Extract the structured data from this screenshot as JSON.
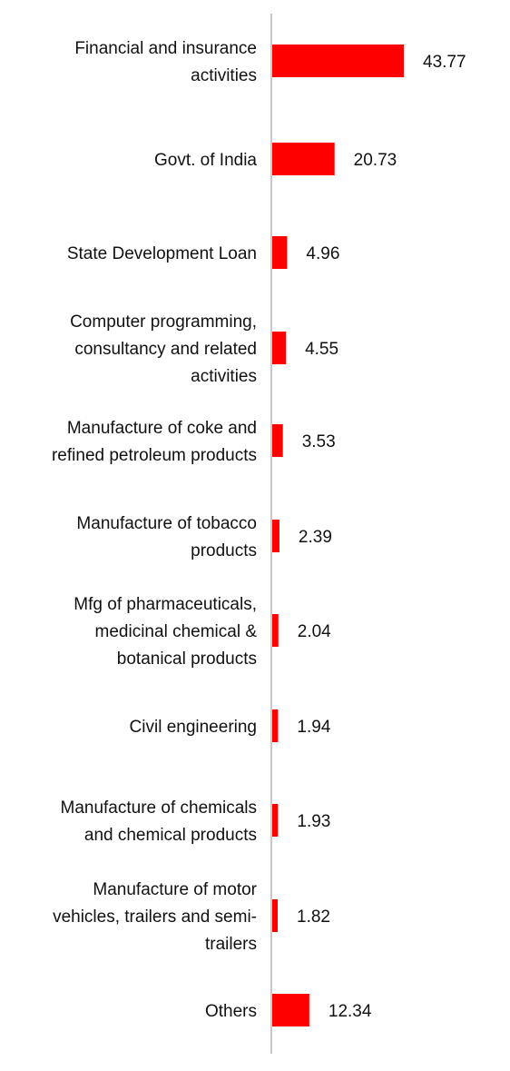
{
  "chart_data": {
    "type": "bar",
    "orientation": "horizontal",
    "categories": [
      [
        "Financial and insurance",
        "activities"
      ],
      [
        "Govt. of India"
      ],
      [
        "State Development Loan"
      ],
      [
        "Computer programming,",
        "consultancy and related",
        "activities"
      ],
      [
        "Manufacture of coke and",
        "refined petroleum products"
      ],
      [
        "Manufacture of tobacco",
        "products"
      ],
      [
        "Mfg of pharmaceuticals,",
        "medicinal chemical &",
        "botanical products"
      ],
      [
        "Civil engineering"
      ],
      [
        "Manufacture of chemicals",
        "and chemical products"
      ],
      [
        "Manufacture of motor",
        "vehicles, trailers and semi-",
        "trailers"
      ],
      [
        "Others"
      ]
    ],
    "values": [
      43.77,
      20.73,
      4.96,
      4.55,
      3.53,
      2.39,
      2.04,
      1.94,
      1.93,
      1.82,
      12.34
    ],
    "value_labels": [
      "43.77",
      "20.73",
      "4.96",
      "4.55",
      "3.53",
      "2.39",
      "2.04",
      "1.94",
      "1.93",
      "1.82",
      "12.34"
    ],
    "title": "",
    "xlabel": "",
    "ylabel": "",
    "xlim": [
      0,
      45
    ],
    "grid": false,
    "legend": "none",
    "colors": {
      "bar": "#ff0000",
      "axis": "#c8c8c8",
      "text": "#111111"
    }
  }
}
